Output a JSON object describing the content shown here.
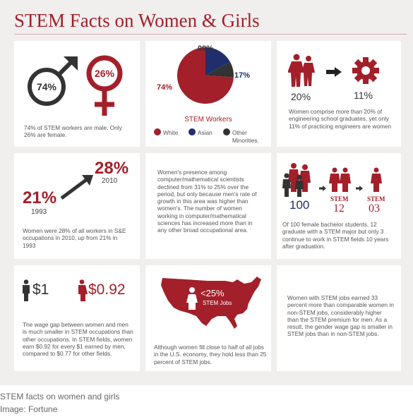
{
  "title": "STEM Facts on Women & Girls",
  "colors": {
    "red": "#a31f2a",
    "navy": "#1f2f6e",
    "dark": "#333333",
    "background": "#f0efee"
  },
  "panel1": {
    "male_pct": "74%",
    "female_pct": "26%",
    "text": "74% of STEM workers are male. Only 26% are female."
  },
  "panel2": {
    "chart_data": {
      "type": "pie",
      "title": "STEM Workers",
      "categories": [
        "White",
        "Asian",
        "Other Minorities."
      ],
      "values": [
        74,
        17,
        9
      ],
      "colors": [
        "#a31f2a",
        "#1f2f6e",
        "#333333"
      ]
    },
    "labels": {
      "white": "74%",
      "asian": "17%",
      "other": "09%"
    },
    "legend": {
      "white": "White",
      "asian": "Asian",
      "other_line1": "Other",
      "other_line2": "Minorities."
    }
  },
  "panel3": {
    "left_pct": "20%",
    "right_pct": "11%",
    "text": "Women comprise more than 20% of engineering school graduates, yet only 11% of practicing engineers are women"
  },
  "panel4": {
    "value_1993": "21%",
    "year_1993": "1993",
    "value_2010": "28%",
    "year_2010": "2010",
    "text": "Women were 28% of all workers in S&E occupations in 2010, up from 21% in 1993"
  },
  "panel5": {
    "text": "Women's presence among computer/mathematical scientists declined from 31% to 25% over the period, but only because men's rate of growth in this area was higher than women's. The number of women working in computer/mathematical sciences has increased more than in any other broad occupational area."
  },
  "panel6": {
    "count_100": "100",
    "stem_label": "STEM",
    "count_12": "12",
    "count_03": "03",
    "text": "Of 100 female bachelor students, 12 graduate with a STEM major but only 3 continue to work in STEM fields 10 years after graduation."
  },
  "panel7": {
    "men_value": "$1",
    "women_value": "$0.92",
    "text": "The wage gap between women and men is much smaller in STEM occupations than other occupations. In STEM fields, women earn $0.92 for every $1 earned by men, compared to $0.77 for other fields."
  },
  "panel8": {
    "map_pct": "<25%",
    "map_label": "STEM Jobs",
    "text": "Although women fill close to half of all jobs in the U.S. economy, they hold less than 25 percent of STEM jobs."
  },
  "panel9": {
    "text": "Women with STEM jobs earned 33 percent more than comparable women in non-STEM jobs, considerably higher than the STEM premium for men. As a result, the gender wage gap is smaller in STEM jobs than in non-STEM jobs."
  },
  "caption": {
    "line1": "STEM facts on women and girls",
    "line2": "Image: Fortune"
  }
}
